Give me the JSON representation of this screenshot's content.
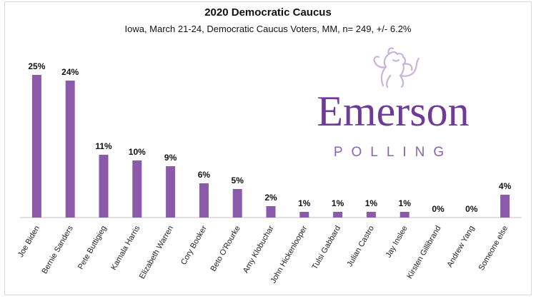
{
  "chart_data": {
    "type": "bar",
    "title": "2020 Democratic Caucus",
    "subtitle": "Iowa, March 21-24, Democratic Caucus Voters, MM, n= 249, +/- 6.2%",
    "categories": [
      "Joe Biden",
      "Bernie Sanders",
      "Pete Buttigieg",
      "Kamala Harris",
      "Elizabeth Warren",
      "Cory Booker",
      "Beto O'Rourke",
      "Amy Klobuchar",
      "John Hickenlooper",
      "Tulsi Gabbard",
      "Julian Castro",
      "Jay Inslee",
      "Kirsten Gillibrand",
      "Andrew Yang",
      "Someone else"
    ],
    "values": [
      25,
      24,
      11,
      10,
      9,
      6,
      5,
      2,
      1,
      1,
      1,
      1,
      0,
      0,
      4
    ],
    "data_labels": [
      "25%",
      "24%",
      "11%",
      "10%",
      "9%",
      "6%",
      "5%",
      "2%",
      "1%",
      "1%",
      "1%",
      "1%",
      "0%",
      "0%",
      "4%"
    ],
    "ylim": [
      0,
      25
    ],
    "xlabel": "",
    "ylabel": "",
    "grid": false,
    "bar_color": "#8b5aaa",
    "axis_color": "#bfbfbf"
  },
  "logo": {
    "wordmark": "Emerson",
    "subtext": "POLLING",
    "icon": "lion-rampant-icon",
    "color": "#6f3b98"
  }
}
